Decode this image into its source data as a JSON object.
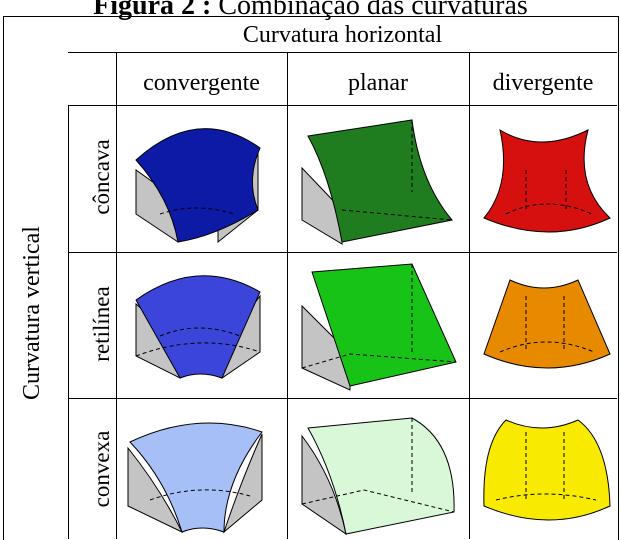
{
  "figure_title": {
    "prefix": "Figura 2 :",
    "text": "Combinação das curvaturas"
  },
  "horizontal_header": "Curvatura horizontal",
  "vertical_header": "Curvatura vertical",
  "columns": [
    "convergente",
    "planar",
    "divergente"
  ],
  "rows": [
    "côncava",
    "retilínea",
    "convexa"
  ],
  "colors": {
    "concava": {
      "convergente": "#0d1aa6",
      "planar": "#1f7d1f",
      "divergente": "#d60f0f"
    },
    "retilinea": {
      "convergente": "#3b45d9",
      "planar": "#18c318",
      "divergente": "#e88a00"
    },
    "convexa": {
      "convergente": "#a7bff7",
      "planar": "#d8f8d8",
      "divergente": "#f8ea00"
    },
    "side": "#c4c4c4",
    "outline": "#000000"
  }
}
